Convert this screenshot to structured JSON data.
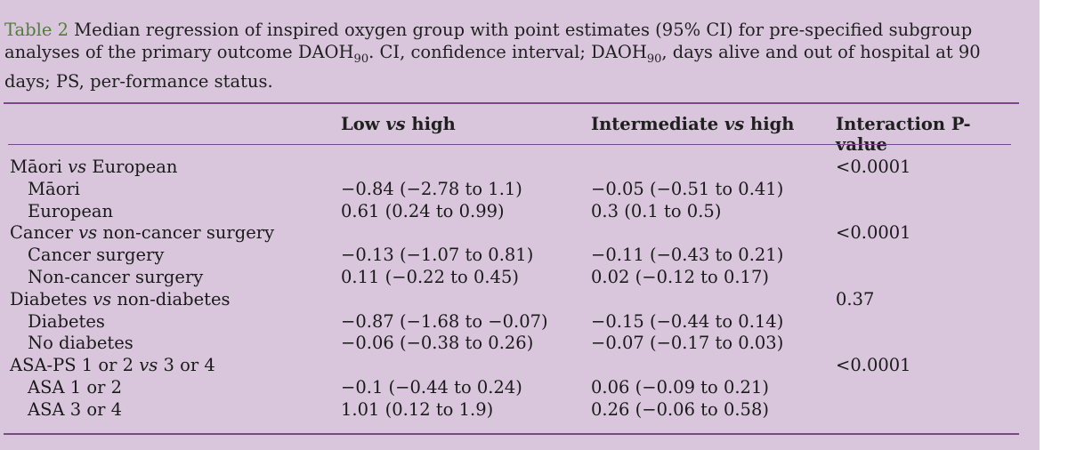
{
  "caption": {
    "label": "Table 2",
    "text": " Median regression of inspired oxygen group with point estimates (95% CI) for pre-specified subgroup analyses of the primary outcome DAOH",
    "sub1": "90",
    "text2": ". CI, confidence interval; DAOH",
    "sub2": "90",
    "text3": ", days alive and out of hospital at 90 days; PS, per-formance status."
  },
  "table": {
    "headers": [
      "",
      "Low vs high",
      "Intermediate vs high",
      "Interaction P-value"
    ],
    "rows": [
      {
        "group": true,
        "label": "Māori vs European",
        "low": "",
        "intermediate": "",
        "p": "<0.0001"
      },
      {
        "group": false,
        "label": "Māori",
        "low": "−0.84 (−2.78 to 1.1)",
        "intermediate": "−0.05 (−0.51 to 0.41)",
        "p": ""
      },
      {
        "group": false,
        "label": "European",
        "low": "0.61 (0.24 to 0.99)",
        "intermediate": "0.3 (0.1 to 0.5)",
        "p": ""
      },
      {
        "group": true,
        "label": "Cancer vs non-cancer surgery",
        "low": "",
        "intermediate": "",
        "p": "<0.0001"
      },
      {
        "group": false,
        "label": "Cancer surgery",
        "low": "−0.13 (−1.07 to 0.81)",
        "intermediate": "−0.11 (−0.43 to 0.21)",
        "p": ""
      },
      {
        "group": false,
        "label": "Non-cancer surgery",
        "low": "0.11 (−0.22 to 0.45)",
        "intermediate": "0.02 (−0.12 to 0.17)",
        "p": ""
      },
      {
        "group": true,
        "label": "Diabetes vs non-diabetes",
        "low": "",
        "intermediate": "",
        "p": "0.37"
      },
      {
        "group": false,
        "label": "Diabetes",
        "low": "−0.87 (−1.68 to −0.07)",
        "intermediate": "−0.15 (−0.44 to 0.14)",
        "p": ""
      },
      {
        "group": false,
        "label": "No diabetes",
        "low": "−0.06 (−0.38 to 0.26)",
        "intermediate": "−0.07 (−0.17 to 0.03)",
        "p": ""
      },
      {
        "group": true,
        "label": "ASA-PS 1 or 2 vs 3 or 4",
        "low": "",
        "intermediate": "",
        "p": "<0.0001"
      },
      {
        "group": false,
        "label": "ASA 1 or 2",
        "low": "−0.1 (−0.44 to 0.24)",
        "intermediate": "0.06 (−0.09 to 0.21)",
        "p": ""
      },
      {
        "group": false,
        "label": "ASA 3 or 4",
        "low": "1.01 (0.12 to 1.9)",
        "intermediate": "0.26 (−0.06 to 0.58)",
        "p": ""
      }
    ]
  },
  "colors": {
    "background": "#d9c6dc",
    "rule": "#7a4a86",
    "label": "#4e7f34"
  }
}
